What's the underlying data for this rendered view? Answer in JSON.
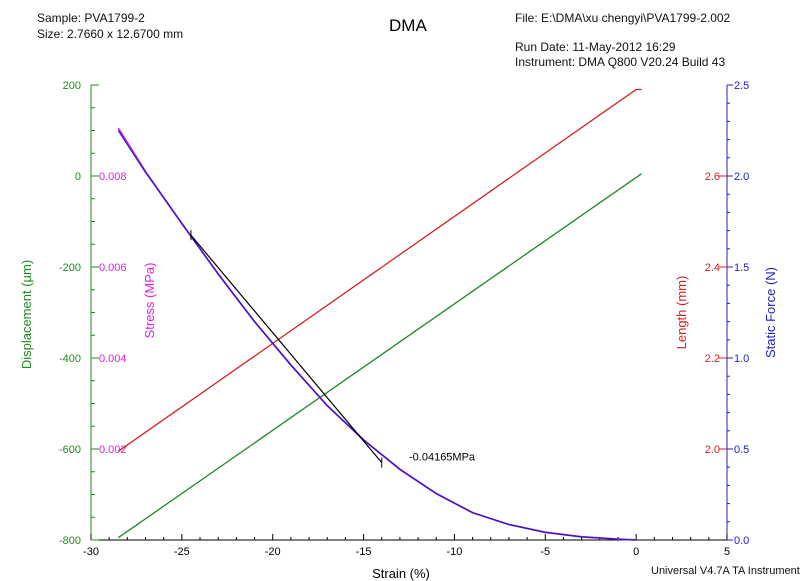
{
  "header": {
    "sample": "Sample: PVA1799-2",
    "size": "Size:  2.7660 x 12.6700 mm",
    "title": "DMA",
    "file": "File: E:\\DMA\\xu chengyi\\PVA1799-2.002",
    "run_date": "Run Date: 11-May-2012 16:29",
    "instrument": "Instrument: DMA Q800 V20.24 Build 43",
    "footer": "Universal V4.7A TA Instruments"
  },
  "colors": {
    "displacement": "#1f8a1f",
    "stress": "#e020e0",
    "length": "#d42020",
    "static_force": "#2020c0",
    "tangent": "#000000"
  },
  "chart_data": {
    "type": "line",
    "xlabel": "Strain (%)",
    "xlim": [
      -30,
      5
    ],
    "x_ticks": [
      -30,
      -25,
      -20,
      -15,
      -10,
      -5,
      0,
      5
    ],
    "axes": {
      "displacement": {
        "label": "Displacement (µm)",
        "lim": [
          -800,
          200
        ],
        "ticks": [
          -800,
          -600,
          -400,
          -200,
          0,
          200
        ]
      },
      "stress": {
        "label": "Stress (MPa)",
        "lim": [
          0.0,
          0.01
        ],
        "ticks": [
          "0.002",
          "0.004",
          "0.006",
          "0.008"
        ]
      },
      "length": {
        "label": "Length (mm)",
        "lim": [
          1.8,
          2.8
        ],
        "ticks": [
          "2.0",
          "2.2",
          "2.4",
          "2.6"
        ]
      },
      "static_force": {
        "label": "Static Force (N)",
        "lim": [
          0.0,
          2.5
        ],
        "ticks": [
          "0.0",
          "0.5",
          "1.0",
          "1.5",
          "2.0",
          "2.5"
        ]
      }
    },
    "series": [
      {
        "key": "displacement",
        "axis": "displacement",
        "x": [
          -28.5,
          0.3
        ],
        "y": [
          -795,
          5
        ]
      },
      {
        "key": "length",
        "axis": "length",
        "x": [
          -28.5,
          0.0,
          0.3
        ],
        "y": [
          1.995,
          2.79,
          2.79
        ]
      },
      {
        "key": "stress",
        "axis": "stress",
        "x": [
          -28.5,
          -27,
          -25,
          -23,
          -21,
          -19,
          -17,
          -15,
          -13,
          -11,
          -9,
          -7,
          -5,
          -3,
          -1,
          0.0
        ],
        "y": [
          0.00905,
          0.0081,
          0.00695,
          0.00585,
          0.0048,
          0.00385,
          0.00295,
          0.0022,
          0.00155,
          0.00102,
          0.0006,
          0.00034,
          0.00017,
          7e-05,
          2e-05,
          0.0
        ]
      },
      {
        "key": "static_force",
        "axis": "static_force",
        "x": [
          -28.5,
          -27,
          -25,
          -23,
          -21,
          -19,
          -17,
          -15,
          -13,
          -11,
          -9,
          -7,
          -5,
          -3,
          -1,
          0.0
        ],
        "y": [
          2.25,
          2.02,
          1.74,
          1.46,
          1.2,
          0.96,
          0.74,
          0.55,
          0.39,
          0.255,
          0.15,
          0.085,
          0.042,
          0.017,
          0.005,
          0.0
        ]
      }
    ],
    "tangent": {
      "axis": "stress",
      "x": [
        -24.5,
        -14.0
      ],
      "y": [
        0.0067,
        0.0017
      ]
    },
    "annotations": [
      {
        "text": "-0.04165MPa",
        "x": -12.5,
        "y": 0.00175,
        "axis": "stress"
      }
    ]
  }
}
